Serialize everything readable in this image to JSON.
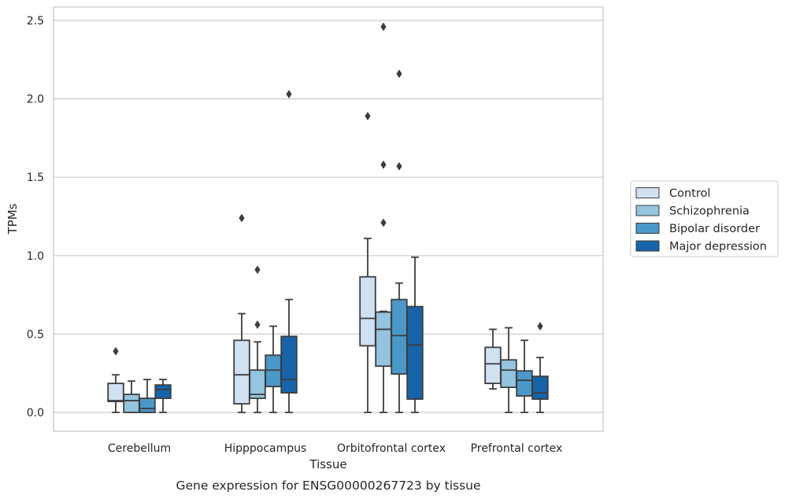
{
  "chart_data": {
    "type": "box",
    "title": "",
    "caption": "Gene expression for ENSG00000267723 by tissue",
    "xlabel": "Tissue",
    "ylabel": "TPMs",
    "ylim": [
      -0.12,
      2.59
    ],
    "yticks": [
      "0.0",
      "0.5",
      "1.0",
      "1.5",
      "2.0",
      "2.5"
    ],
    "ytick_values": [
      0.0,
      0.5,
      1.0,
      1.5,
      2.0,
      2.5
    ],
    "grid": "horizontal",
    "legend_position": "center-right",
    "categories": [
      "Cerebellum",
      "Hipppocampus",
      "Orbitofrontal cortex",
      "Prefrontal cortex"
    ],
    "series": [
      {
        "name": "Control",
        "color": "#d0e1f2",
        "boxes": [
          {
            "whisker_low": 0.0,
            "q1": 0.07,
            "median": 0.075,
            "q3": 0.185,
            "whisker_high": 0.24,
            "outliers": [
              0.39
            ]
          },
          {
            "whisker_low": 0.0,
            "q1": 0.055,
            "median": 0.24,
            "q3": 0.46,
            "whisker_high": 0.63,
            "outliers": [
              1.24
            ]
          },
          {
            "whisker_low": 0.0,
            "q1": 0.425,
            "median": 0.6,
            "q3": 0.865,
            "whisker_high": 1.11,
            "outliers": [
              1.89
            ]
          },
          {
            "whisker_low": 0.15,
            "q1": 0.185,
            "median": 0.31,
            "q3": 0.415,
            "whisker_high": 0.53,
            "outliers": []
          }
        ]
      },
      {
        "name": "Schizophrenia",
        "color": "#94c4df",
        "boxes": [
          {
            "whisker_low": 0.0,
            "q1": 0.0,
            "median": 0.075,
            "q3": 0.115,
            "whisker_high": 0.2,
            "outliers": []
          },
          {
            "whisker_low": 0.0,
            "q1": 0.09,
            "median": 0.115,
            "q3": 0.27,
            "whisker_high": 0.45,
            "outliers": [
              0.56,
              0.91
            ]
          },
          {
            "whisker_low": 0.0,
            "q1": 0.295,
            "median": 0.53,
            "q3": 0.64,
            "whisker_high": 0.645,
            "outliers": [
              1.21,
              1.58,
              2.46
            ]
          },
          {
            "whisker_low": 0.0,
            "q1": 0.16,
            "median": 0.27,
            "q3": 0.335,
            "whisker_high": 0.54,
            "outliers": []
          }
        ]
      },
      {
        "name": "Bipolar disorder",
        "color": "#4a98c9",
        "boxes": [
          {
            "whisker_low": 0.0,
            "q1": 0.0,
            "median": 0.025,
            "q3": 0.09,
            "whisker_high": 0.21,
            "outliers": []
          },
          {
            "whisker_low": 0.0,
            "q1": 0.165,
            "median": 0.27,
            "q3": 0.365,
            "whisker_high": 0.55,
            "outliers": []
          },
          {
            "whisker_low": 0.0,
            "q1": 0.245,
            "median": 0.49,
            "q3": 0.72,
            "whisker_high": 0.825,
            "outliers": [
              1.57,
              2.16
            ]
          },
          {
            "whisker_low": 0.0,
            "q1": 0.105,
            "median": 0.205,
            "q3": 0.265,
            "whisker_high": 0.46,
            "outliers": []
          }
        ]
      },
      {
        "name": "Major depression",
        "color": "#1764ab",
        "boxes": [
          {
            "whisker_low": 0.0,
            "q1": 0.09,
            "median": 0.145,
            "q3": 0.175,
            "whisker_high": 0.21,
            "outliers": []
          },
          {
            "whisker_low": 0.0,
            "q1": 0.125,
            "median": 0.21,
            "q3": 0.485,
            "whisker_high": 0.72,
            "outliers": [
              2.03
            ]
          },
          {
            "whisker_low": 0.0,
            "q1": 0.085,
            "median": 0.43,
            "q3": 0.675,
            "whisker_high": 0.99,
            "outliers": []
          },
          {
            "whisker_low": 0.0,
            "q1": 0.085,
            "median": 0.125,
            "q3": 0.23,
            "whisker_high": 0.35,
            "outliers": [
              0.55
            ]
          }
        ]
      }
    ]
  }
}
